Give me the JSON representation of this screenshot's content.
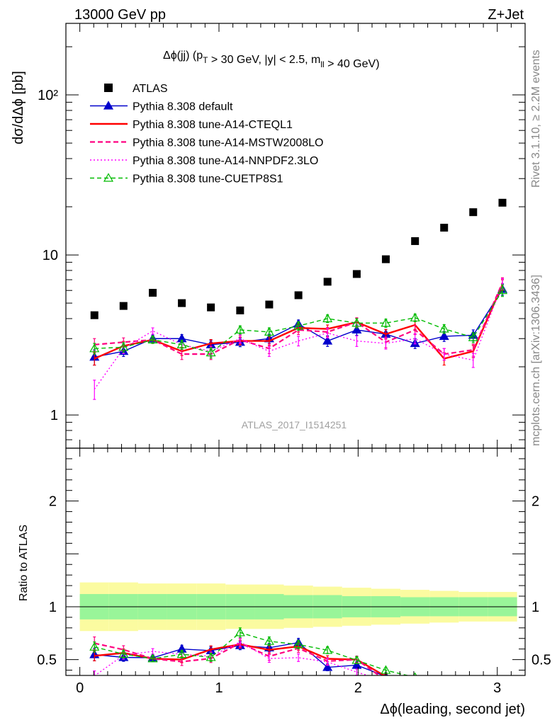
{
  "header": {
    "left": "13000 GeV pp",
    "right": "Z+Jet"
  },
  "side_labels": {
    "rivet": "Rivet 3.1.10, ≥ 2.2M events",
    "mcplots": "mcplots.cern.ch [arXiv:1306.3436]"
  },
  "plot_title": "Δϕ(jj) (p_T > 30 GeV, |y| < 2.5, m_ll > 40 GeV)",
  "analysis_id": "ATLAS_2017_I1514251",
  "colors": {
    "data": "#000000",
    "default": "#0000cc",
    "a14cteql1": "#ff0000",
    "a14mstw": "#ff0080",
    "a14nnpdf": "#ff00ff",
    "cuetp8s1": "#00bb00",
    "band_inner": "#99f599",
    "band_outer": "#fbfba0"
  },
  "chart_data": {
    "type": "line",
    "title": "Δϕ(jj) (p_T > 30 GeV, |y| < 2.5, m_ll > 40 GeV)",
    "xlabel": "Δϕ(leading, second jet)",
    "ylabel": "dσ/dΔϕ [pb]",
    "ratio_ylabel": "Ratio to ATLAS",
    "xlim": [
      -0.1,
      3.2
    ],
    "ylim": [
      0.62,
      280
    ],
    "yscale": "log",
    "ratio_ylim": [
      0.35,
      2.5
    ],
    "x_ticks": [
      0,
      1,
      2,
      3
    ],
    "x_tick_labels": [
      "0",
      "1",
      "2",
      "3"
    ],
    "y_ticks": [
      1,
      10,
      100
    ],
    "y_tick_labels": [
      "1",
      "10",
      "10²"
    ],
    "ratio_ticks": [
      0.5,
      1,
      2
    ],
    "ratio_tick_labels": [
      "0.5",
      "1",
      "2"
    ],
    "x": [
      0.105,
      0.314,
      0.524,
      0.733,
      0.942,
      1.152,
      1.361,
      1.571,
      1.78,
      1.99,
      2.199,
      2.409,
      2.618,
      2.827,
      3.037
    ],
    "band_edges": [
      0.0,
      0.209,
      0.419,
      0.628,
      0.838,
      1.047,
      1.257,
      1.466,
      1.676,
      1.885,
      2.094,
      2.304,
      2.513,
      2.723,
      2.932,
      3.142
    ],
    "data": {
      "name": "ATLAS",
      "values": [
        4.2,
        4.8,
        5.8,
        5.0,
        4.7,
        4.5,
        4.9,
        5.6,
        6.8,
        7.6,
        9.4,
        12.2,
        14.8,
        18.5,
        21.2
      ]
    },
    "bands": {
      "inner_rel": [
        0.12,
        0.12,
        0.12,
        0.12,
        0.12,
        0.12,
        0.12,
        0.11,
        0.11,
        0.1,
        0.1,
        0.09,
        0.09,
        0.09,
        0.09
      ],
      "outer_rel": [
        0.23,
        0.23,
        0.22,
        0.22,
        0.22,
        0.21,
        0.21,
        0.2,
        0.19,
        0.18,
        0.17,
        0.16,
        0.15,
        0.14,
        0.14
      ]
    },
    "series": [
      {
        "name": "Pythia 8.308 default",
        "key": "default",
        "marker": "triangle-filled",
        "dash": "",
        "values": [
          2.3,
          2.5,
          3.0,
          3.0,
          2.75,
          2.85,
          3.0,
          3.7,
          2.9,
          3.4,
          3.2,
          2.8,
          3.1,
          3.15,
          6.1
        ],
        "errors": [
          0.25,
          0.18,
          0.15,
          0.18,
          0.18,
          0.18,
          0.2,
          0.22,
          0.22,
          0.25,
          0.22,
          0.2,
          0.22,
          0.25,
          0.5
        ]
      },
      {
        "name": "Pythia 8.308 tune-A14-CTEQL1",
        "key": "a14cteql1",
        "marker": "none",
        "dash": "",
        "values": [
          2.25,
          2.7,
          2.95,
          2.5,
          2.8,
          2.9,
          2.9,
          3.5,
          3.45,
          3.8,
          3.2,
          3.65,
          2.25,
          2.5,
          6.5
        ],
        "errors": [
          0.2,
          0.18,
          0.15,
          0.15,
          0.16,
          0.16,
          0.18,
          0.2,
          0.2,
          0.22,
          0.22,
          0.22,
          0.2,
          0.22,
          0.5
        ]
      },
      {
        "name": "Pythia 8.308 tune-A14-MSTW2008LO",
        "key": "a14mstw",
        "marker": "none",
        "dash": "7,4",
        "values": [
          2.75,
          2.85,
          2.95,
          2.4,
          2.4,
          2.95,
          2.6,
          3.4,
          3.3,
          3.8,
          2.85,
          3.4,
          2.4,
          2.55,
          6.7
        ],
        "errors": [
          0.25,
          0.18,
          0.15,
          0.18,
          0.18,
          0.18,
          0.18,
          0.22,
          0.22,
          0.25,
          0.22,
          0.22,
          0.2,
          0.22,
          0.5
        ]
      },
      {
        "name": "Pythia 8.308 tune-A14-NNPDF2.3LO",
        "key": "a14nnpdf",
        "marker": "none",
        "dash": "2,3",
        "values": [
          1.45,
          2.6,
          3.35,
          2.75,
          2.5,
          3.0,
          2.5,
          2.9,
          3.25,
          2.9,
          2.8,
          3.0,
          2.4,
          2.2,
          6.6
        ],
        "errors": [
          0.2,
          0.18,
          0.15,
          0.18,
          0.18,
          0.18,
          0.18,
          0.2,
          0.22,
          0.22,
          0.22,
          0.22,
          0.2,
          0.22,
          0.5
        ]
      },
      {
        "name": "Pythia 8.308 tune-CUETP8S1",
        "key": "cuetp8s1",
        "marker": "triangle-open",
        "dash": "6,4",
        "values": [
          2.6,
          2.65,
          2.95,
          2.75,
          2.45,
          3.4,
          3.3,
          3.6,
          4.0,
          3.75,
          3.75,
          4.05,
          3.45,
          3.05,
          6.0
        ],
        "errors": [
          0.2,
          0.18,
          0.15,
          0.18,
          0.18,
          0.2,
          0.2,
          0.22,
          0.22,
          0.25,
          0.22,
          0.22,
          0.22,
          0.22,
          0.5
        ]
      }
    ],
    "legend_position": "top-left"
  }
}
